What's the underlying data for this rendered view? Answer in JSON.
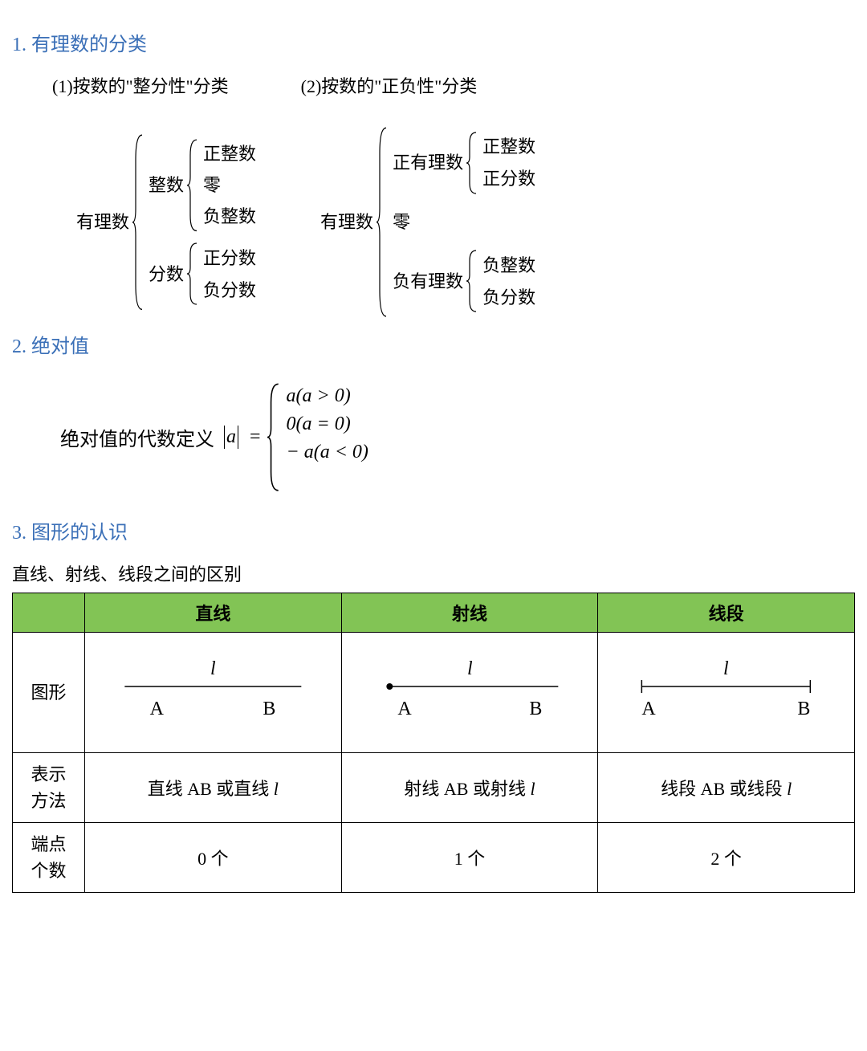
{
  "colors": {
    "heading": "#3a6fb7",
    "table_header_bg": "#82c455",
    "text": "#000000",
    "border": "#000000"
  },
  "section1": {
    "title": "1. 有理数的分类",
    "col1": {
      "title": "(1)按数的\"整分性\"分类",
      "root": "有理数",
      "branch1": {
        "label": "整数",
        "leaves": [
          "正整数",
          "零",
          "负整数"
        ]
      },
      "branch2": {
        "label": "分数",
        "leaves": [
          "正分数",
          "负分数"
        ]
      }
    },
    "col2": {
      "title": "(2)按数的\"正负性\"分类",
      "root": "有理数",
      "branch1": {
        "label": "正有理数",
        "leaves": [
          "正整数",
          "正分数"
        ]
      },
      "mid": "零",
      "branch2": {
        "label": "负有理数",
        "leaves": [
          "负整数",
          "负分数"
        ]
      }
    }
  },
  "section2": {
    "title": "2. 绝对值",
    "label": "绝对值的代数定义",
    "var": "a",
    "eq": "=",
    "cases": [
      "a(a > 0)",
      "0(a = 0)",
      "− a(a < 0)"
    ]
  },
  "section3": {
    "title": "3. 图形的认识",
    "caption": "直线、射线、线段之间的区别",
    "headers": [
      "",
      "直线",
      "射线",
      "线段"
    ],
    "row_fig": {
      "label": "图形",
      "line_label": "l",
      "ptA": "A",
      "ptB": "B"
    },
    "row_repr": {
      "label": "表示\n方法",
      "cells": [
        "直线 AB 或直线 l",
        "射线 AB 或射线 l",
        "线段 AB 或线段 l"
      ]
    },
    "row_ends": {
      "label": "端点\n个数",
      "cells": [
        "0 个",
        "1 个",
        "2 个"
      ]
    }
  }
}
